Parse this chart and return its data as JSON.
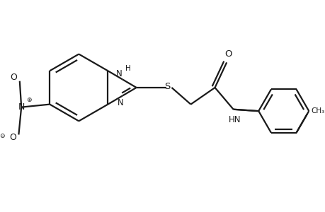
{
  "bg": "#ffffff",
  "fc": "#1a1a1a",
  "lw": 1.6,
  "fig_w": 4.6,
  "fig_h": 3.0,
  "dpi": 100,
  "xlim": [
    -0.3,
    9.2
  ],
  "ylim": [
    -0.5,
    5.8
  ]
}
